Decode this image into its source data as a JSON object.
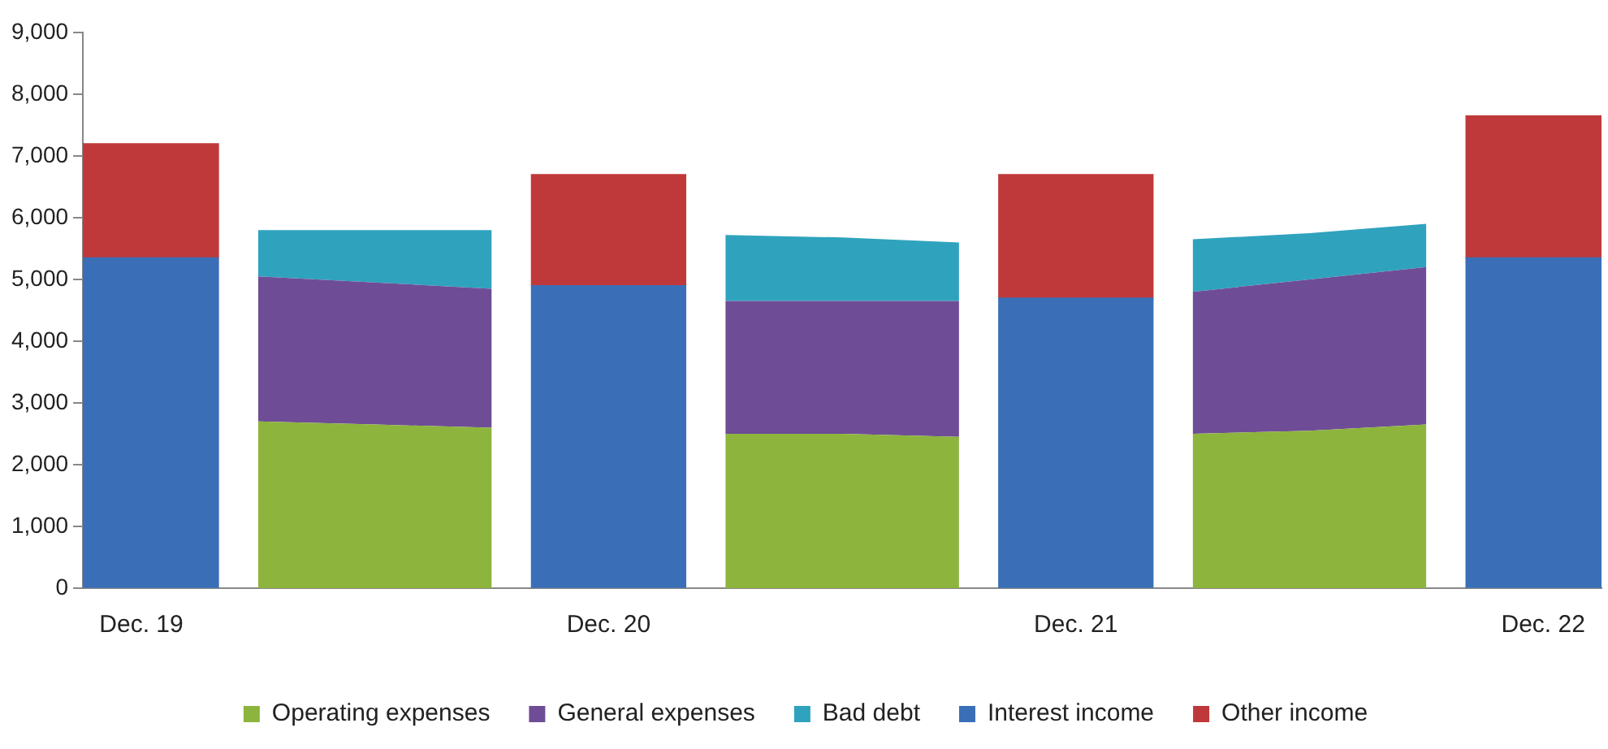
{
  "chart_data": {
    "type": "bar",
    "stacked": true,
    "categories": [
      "Dec. 19",
      null,
      null,
      null,
      "Dec. 20",
      null,
      null,
      null,
      "Dec. 21",
      null,
      null,
      null,
      "Dec. 22"
    ],
    "series": [
      {
        "name": "Operating expenses",
        "type": "area",
        "color": "#8db43c",
        "values": [
          null,
          2700,
          2650,
          2600,
          null,
          2500,
          2500,
          2450,
          null,
          2500,
          2550,
          2650,
          null
        ]
      },
      {
        "name": "General expenses",
        "type": "area",
        "color": "#6e4d96",
        "values": [
          null,
          2350,
          2300,
          2250,
          null,
          2150,
          2150,
          2200,
          null,
          2300,
          2450,
          2550,
          null
        ]
      },
      {
        "name": "Bad debt",
        "type": "area",
        "color": "#2fa3be",
        "values": [
          null,
          750,
          850,
          950,
          null,
          1070,
          1030,
          950,
          null,
          850,
          750,
          700,
          null
        ]
      },
      {
        "name": "Interest income",
        "type": "bar",
        "color": "#3a6fb8",
        "values": [
          5350,
          null,
          null,
          null,
          4900,
          null,
          null,
          null,
          4700,
          null,
          null,
          null,
          5350
        ]
      },
      {
        "name": "Other income",
        "type": "bar",
        "color": "#c0393a",
        "values": [
          1850,
          null,
          null,
          null,
          1800,
          null,
          null,
          null,
          2000,
          null,
          null,
          null,
          2300
        ]
      }
    ],
    "ylim": [
      0,
      9000
    ],
    "yticks": [
      {
        "value": 0,
        "label": "0"
      },
      {
        "value": 1000,
        "label": "1,000"
      },
      {
        "value": 2000,
        "label": "2,000"
      },
      {
        "value": 3000,
        "label": "3,000"
      },
      {
        "value": 4000,
        "label": "4,000"
      },
      {
        "value": 5000,
        "label": "5,000"
      },
      {
        "value": 6000,
        "label": "6,000"
      },
      {
        "value": 7000,
        "label": "7,000"
      },
      {
        "value": 8000,
        "label": "8,000"
      },
      {
        "value": 9000,
        "label": "9,000"
      }
    ],
    "grid": false,
    "legend": "bottom"
  }
}
